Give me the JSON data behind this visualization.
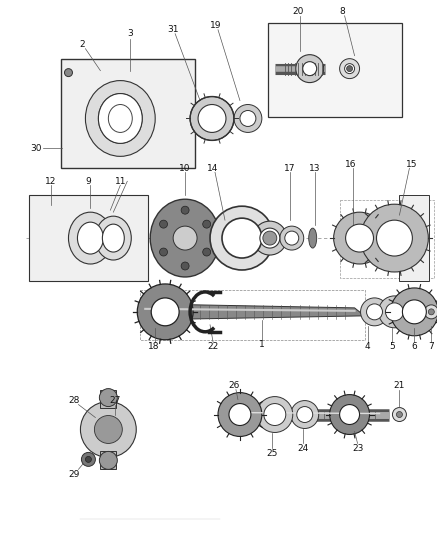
{
  "bg_color": "#ffffff",
  "fig_width": 4.38,
  "fig_height": 5.33,
  "dpi": 100,
  "label_color": "#111111",
  "label_fontsize": 6.5,
  "line_color": "#333333"
}
